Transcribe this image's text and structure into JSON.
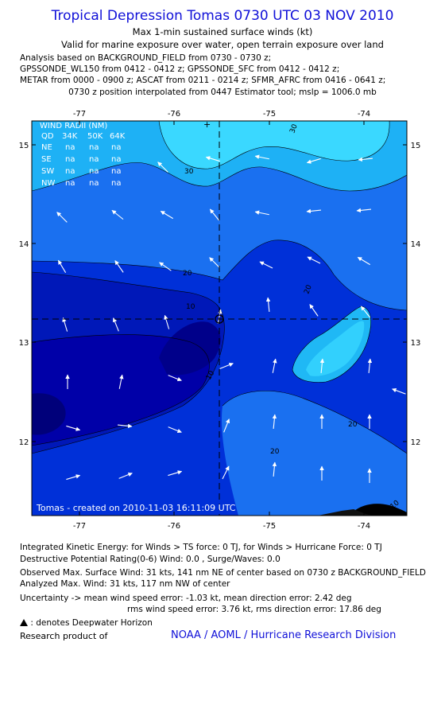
{
  "header": {
    "title": "Tropical Depression Tomas 0730 UTC 03 NOV 2010",
    "subtitle": "Max 1-min sustained surface winds (kt)",
    "valid": "Valid for marine exposure over water, open terrain exposure over land",
    "analysis_lines": [
      "Analysis based on BACKGROUND_FIELD from 0730 - 0730 z;",
      "GPSSONDE_WL150 from 0412 - 0412 z; GPSSONDE_SFC from 0412 - 0412 z;",
      "METAR from 0000 - 0900 z; ASCAT from 0211 - 0214 z; SFMR_AFRC from 0416 - 0641 z;"
    ],
    "position_note": "0730 z position interpolated from 0447 Estimator tool; mslp = 1006.0 mb"
  },
  "map": {
    "lon_ticks": [
      "-77",
      "-76",
      "-75",
      "-74"
    ],
    "lat_ticks": [
      "15",
      "14",
      "13",
      "12"
    ],
    "center_lon": -75.55,
    "center_lat": 13.25,
    "contour_labels": [
      "30",
      "30",
      "20",
      "20",
      "10",
      "10",
      "20",
      "20",
      "10"
    ],
    "wind_radii": {
      "title": "WIND RADII (NM)",
      "header": [
        "QD",
        "34K",
        "50K",
        "64K"
      ],
      "rows": [
        [
          "NE",
          "na",
          "na",
          "na"
        ],
        [
          "SE",
          "na",
          "na",
          "na"
        ],
        [
          "SW",
          "na",
          "na",
          "na"
        ],
        [
          "NW",
          "na",
          "na",
          "na"
        ]
      ]
    },
    "credit": "Tomas - created on 2010-11-03 16:11:09 UTC",
    "colors": {
      "lt10": "#0000a8",
      "c10_20": "#0030d8",
      "c20_30": "#1a70f0",
      "c30_40": "#1fb8f5",
      "c40": "#3ad8ff",
      "land": "#000000"
    }
  },
  "footer": {
    "ike": "Integrated Kinetic Energy:  for Winds > TS force: 0 TJ,  for Winds > Hurricane Force: 0 TJ",
    "dpr": "Destructive Potential Rating(0-6)   Wind: 0.0 , Surge/Waves: 0.0",
    "observed": "Observed Max. Surface Wind: 31 kts, 141 nm NE of center based on 0730 z BACKGROUND_FIELD",
    "analyzed": "Analyzed Max. Wind: 31 kts, 117 nm NW of center",
    "uncertainty1": "Uncertainty -> mean wind speed error:  -1.03 kt,   mean direction error: 2.42 deg",
    "uncertainty2": "rms wind speed error: 3.76 kt,   rms direction error: 17.86 deg",
    "deepwater": ": denotes Deepwater Horizon",
    "research_label": "Research product of",
    "research_org": "NOAA / AOML / Hurricane Research Division"
  }
}
